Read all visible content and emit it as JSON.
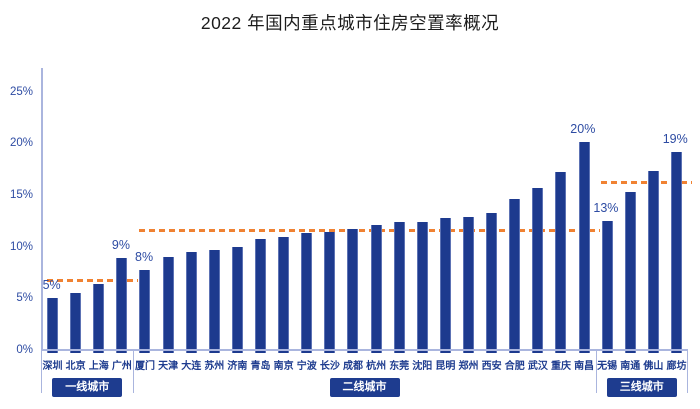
{
  "colors": {
    "title": "#1c1c1c",
    "bar": "#1d3a8e",
    "bar_edge": "#5c72b4",
    "dashed_line": "#f08232",
    "axis_line": "#aab5de",
    "tick_label": "#2e4ca3",
    "city_label": "#1e3c8f",
    "group_box_bg": "#1e3c8f",
    "group_box_text": "#ffffff"
  },
  "chart_data": {
    "type": "bar",
    "title": "2022 年国内重点城市住房空置率概况",
    "xlabel": "",
    "ylabel": "",
    "ylim": [
      0,
      27.3
    ],
    "grid": false,
    "legend_position": "none",
    "ytick_values": [
      0,
      5,
      10,
      15,
      20,
      25
    ],
    "ytick_labels": [
      "0%",
      "5%",
      "10%",
      "15%",
      "20%",
      "25%"
    ],
    "categories": [
      "深圳",
      "北京",
      "上海",
      "广州",
      "厦门",
      "天津",
      "大连",
      "苏州",
      "济南",
      "青岛",
      "南京",
      "宁波",
      "长沙",
      "成都",
      "杭州",
      "东莞",
      "沈阳",
      "昆明",
      "郑州",
      "西安",
      "合肥",
      "武汉",
      "重庆",
      "南昌",
      "无锡",
      "南通",
      "佛山",
      "廊坊"
    ],
    "values": [
      5.0,
      5.5,
      6.4,
      8.9,
      7.7,
      9.0,
      9.5,
      9.7,
      10.0,
      10.7,
      10.9,
      11.3,
      11.4,
      11.7,
      12.1,
      12.4,
      12.4,
      12.8,
      12.9,
      13.3,
      14.6,
      15.7,
      17.2,
      20.1,
      12.5,
      15.3,
      17.3,
      19.2
    ],
    "bar_value_labels": [
      "5%",
      "",
      "",
      "9%",
      "8%",
      "",
      "",
      "",
      "",
      "",
      "",
      "",
      "",
      "",
      "",
      "",
      "",
      "",
      "",
      "",
      "",
      "",
      "",
      "20%",
      "13%",
      "",
      "",
      "19%"
    ],
    "groups": [
      {
        "label": "一线城市",
        "start_index": 0,
        "city_count": 4,
        "dashed_avg_line_value": 6.7
      },
      {
        "label": "二线城市",
        "start_index": 4,
        "city_count": 20,
        "dashed_avg_line_value": 11.5
      },
      {
        "label": "三线城市",
        "start_index": 24,
        "city_count": 4,
        "dashed_avg_line_value": 16.2
      }
    ]
  }
}
